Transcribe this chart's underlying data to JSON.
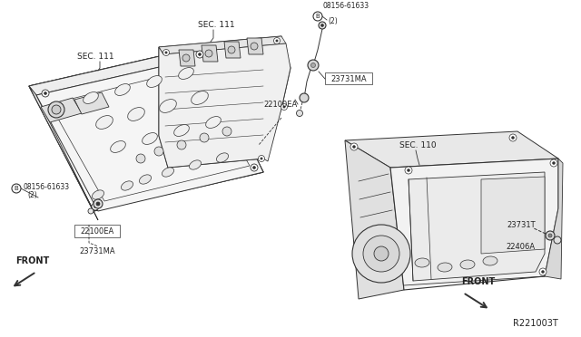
{
  "background_color": "#ffffff",
  "line_color": "#333333",
  "text_color": "#222222",
  "diagram_id": "R221003T",
  "parts": {
    "bolt_circle": "08156-61633",
    "bolt_qty": "(2)",
    "cam_sensor": "22100EA",
    "crank_sensor_ma": "23731MA",
    "crank_sensor_t": "23731T",
    "angle_sensor": "22406A"
  },
  "sections": {
    "left_head": "SEC. 111",
    "right_head": "SEC. 111",
    "block": "SEC. 110"
  },
  "layout": {
    "figw": 6.4,
    "figh": 3.72,
    "dpi": 100
  }
}
